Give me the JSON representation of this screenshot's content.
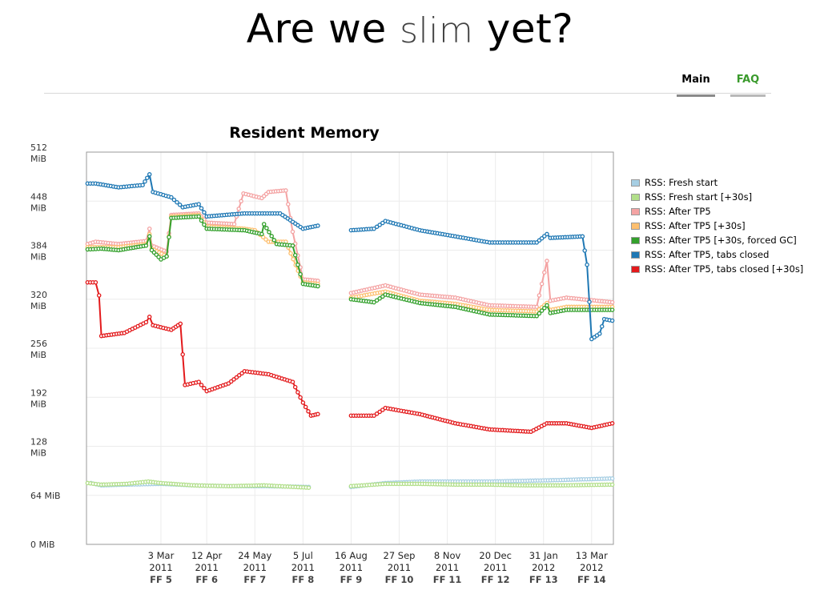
{
  "header": {
    "title_part1": "Are we",
    "title_part2": "slim",
    "title_part3": "yet?"
  },
  "nav": {
    "main": "Main",
    "faq": "FAQ"
  },
  "chart_data": {
    "type": "line",
    "title": "Resident Memory",
    "ylim": [
      0,
      512
    ],
    "y_ticks": [
      {
        "value": 0,
        "line1": "0 MiB",
        "line2": ""
      },
      {
        "value": 64,
        "line1": "64 MiB",
        "line2": ""
      },
      {
        "value": 128,
        "line1": "128",
        "line2": "MiB"
      },
      {
        "value": 192,
        "line1": "192",
        "line2": "MiB"
      },
      {
        "value": 256,
        "line1": "256",
        "line2": "MiB"
      },
      {
        "value": 320,
        "line1": "320",
        "line2": "MiB"
      },
      {
        "value": 384,
        "line1": "384",
        "line2": "MiB"
      },
      {
        "value": 448,
        "line1": "448",
        "line2": "MiB"
      },
      {
        "value": 512,
        "line1": "512",
        "line2": "MiB"
      }
    ],
    "x_range": [
      "2010-12-28",
      "2012-04-01"
    ],
    "x_ticks": [
      {
        "date": "2011-03-03",
        "line1": "3 Mar",
        "line2": "2011",
        "line3": "FF 5"
      },
      {
        "date": "2011-04-12",
        "line1": "12 Apr",
        "line2": "2011",
        "line3": "FF 6"
      },
      {
        "date": "2011-05-24",
        "line1": "24 May",
        "line2": "2011",
        "line3": "FF 7"
      },
      {
        "date": "2011-07-05",
        "line1": "5 Jul",
        "line2": "2011",
        "line3": "FF 8"
      },
      {
        "date": "2011-08-16",
        "line1": "16 Aug",
        "line2": "2011",
        "line3": "FF 9"
      },
      {
        "date": "2011-09-27",
        "line1": "27 Sep",
        "line2": "2011",
        "line3": "FF 10"
      },
      {
        "date": "2011-11-08",
        "line1": "8 Nov",
        "line2": "2011",
        "line3": "FF 11"
      },
      {
        "date": "2011-12-20",
        "line1": "20 Dec",
        "line2": "2011",
        "line3": "FF 12"
      },
      {
        "date": "2012-01-31",
        "line1": "31 Jan",
        "line2": "2012",
        "line3": "FF 13"
      },
      {
        "date": "2012-03-13",
        "line1": "13 Mar",
        "line2": "2012",
        "line3": "FF 14"
      }
    ],
    "legend_position": "right",
    "series": [
      {
        "name": "RSS: Fresh start",
        "color": "#a6cee3",
        "segments": [
          [
            [
              "2011-01-01",
              80
            ],
            [
              "2011-01-10",
              77
            ],
            [
              "2011-02-01",
              78
            ],
            [
              "2011-03-03",
              79
            ],
            [
              "2011-04-01",
              77
            ],
            [
              "2011-05-01",
              76
            ],
            [
              "2011-06-01",
              76
            ],
            [
              "2011-07-10",
              75
            ]
          ],
          [
            [
              "2011-08-16",
              75
            ],
            [
              "2011-09-15",
              80
            ],
            [
              "2011-10-15",
              82
            ],
            [
              "2011-11-15",
              82
            ],
            [
              "2011-12-15",
              82
            ],
            [
              "2012-01-15",
              83
            ],
            [
              "2012-02-15",
              84
            ],
            [
              "2012-03-31",
              86
            ]
          ]
        ]
      },
      {
        "name": "RSS: Fresh start [+30s]",
        "color": "#b2df8a",
        "segments": [
          [
            [
              "2010-12-29",
              80
            ],
            [
              "2011-01-10",
              78
            ],
            [
              "2011-02-01",
              79
            ],
            [
              "2011-02-20",
              82
            ],
            [
              "2011-03-03",
              80
            ],
            [
              "2011-04-01",
              77
            ],
            [
              "2011-05-01",
              76
            ],
            [
              "2011-06-01",
              77
            ],
            [
              "2011-07-10",
              74
            ]
          ],
          [
            [
              "2011-08-16",
              76
            ],
            [
              "2011-09-15",
              79
            ],
            [
              "2011-10-15",
              79
            ],
            [
              "2011-11-15",
              78
            ],
            [
              "2011-12-15",
              78
            ],
            [
              "2012-01-15",
              77
            ],
            [
              "2012-02-15",
              77
            ],
            [
              "2012-03-31",
              78
            ]
          ]
        ]
      },
      {
        "name": "RSS: After TP5",
        "color": "#f4a3a3",
        "segments": [
          [
            [
              "2010-12-29",
              392
            ],
            [
              "2011-01-05",
              395
            ],
            [
              "2011-01-25",
              392
            ],
            [
              "2011-02-18",
              396
            ],
            [
              "2011-02-21",
              412
            ],
            [
              "2011-02-23",
              390
            ],
            [
              "2011-03-08",
              382
            ],
            [
              "2011-03-12",
              430
            ],
            [
              "2011-04-05",
              432
            ],
            [
              "2011-04-12",
              420
            ],
            [
              "2011-05-06",
              418
            ],
            [
              "2011-05-14",
              458
            ],
            [
              "2011-05-30",
              452
            ],
            [
              "2011-06-05",
              460
            ],
            [
              "2011-06-20",
              462
            ],
            [
              "2011-06-26",
              408
            ],
            [
              "2011-07-05",
              346
            ],
            [
              "2011-07-18",
              344
            ]
          ],
          [
            [
              "2011-08-16",
              328
            ],
            [
              "2011-09-15",
              338
            ],
            [
              "2011-10-15",
              326
            ],
            [
              "2011-11-15",
              322
            ],
            [
              "2011-12-15",
              312
            ],
            [
              "2012-01-25",
              310
            ],
            [
              "2012-02-03",
              370
            ],
            [
              "2012-02-06",
              318
            ],
            [
              "2012-02-20",
              322
            ],
            [
              "2012-03-31",
              316
            ]
          ]
        ]
      },
      {
        "name": "RSS: After TP5 [+30s]",
        "color": "#fdbf6f",
        "segments": [
          [
            [
              "2010-12-29",
              388
            ],
            [
              "2011-01-25",
              388
            ],
            [
              "2011-02-18",
              392
            ],
            [
              "2011-02-21",
              405
            ],
            [
              "2011-02-23",
              386
            ],
            [
              "2011-03-08",
              376
            ],
            [
              "2011-03-12",
              428
            ],
            [
              "2011-04-05",
              430
            ],
            [
              "2011-04-12",
              415
            ],
            [
              "2011-05-15",
              412
            ],
            [
              "2011-05-24",
              410
            ],
            [
              "2011-06-05",
              395
            ],
            [
              "2011-06-20",
              395
            ],
            [
              "2011-07-05",
              342
            ],
            [
              "2011-07-18",
              340
            ]
          ],
          [
            [
              "2011-08-16",
              322
            ],
            [
              "2011-09-15",
              330
            ],
            [
              "2011-10-15",
              318
            ],
            [
              "2011-11-15",
              314
            ],
            [
              "2011-12-15",
              306
            ],
            [
              "2012-01-25",
              304
            ],
            [
              "2012-02-03",
              315
            ],
            [
              "2012-02-06",
              306
            ],
            [
              "2012-02-20",
              310
            ],
            [
              "2012-03-31",
              310
            ]
          ]
        ]
      },
      {
        "name": "RSS: After TP5 [+30s, forced GC]",
        "color": "#33a02c",
        "segments": [
          [
            [
              "2010-12-29",
              385
            ],
            [
              "2011-01-10",
              386
            ],
            [
              "2011-01-25",
              384
            ],
            [
              "2011-02-18",
              390
            ],
            [
              "2011-02-21",
              402
            ],
            [
              "2011-02-23",
              384
            ],
            [
              "2011-03-03",
              372
            ],
            [
              "2011-03-08",
              376
            ],
            [
              "2011-03-12",
              426
            ],
            [
              "2011-04-05",
              428
            ],
            [
              "2011-04-12",
              412
            ],
            [
              "2011-05-15",
              410
            ],
            [
              "2011-05-30",
              405
            ],
            [
              "2011-06-01",
              418
            ],
            [
              "2011-06-12",
              392
            ],
            [
              "2011-06-26",
              390
            ],
            [
              "2011-07-05",
              340
            ],
            [
              "2011-07-18",
              337
            ]
          ],
          [
            [
              "2011-08-16",
              320
            ],
            [
              "2011-09-05",
              316
            ],
            [
              "2011-09-15",
              326
            ],
            [
              "2011-10-15",
              315
            ],
            [
              "2011-11-15",
              310
            ],
            [
              "2011-12-15",
              300
            ],
            [
              "2012-01-25",
              298
            ],
            [
              "2012-02-03",
              312
            ],
            [
              "2012-02-06",
              302
            ],
            [
              "2012-02-20",
              306
            ],
            [
              "2012-03-31",
              306
            ]
          ]
        ]
      },
      {
        "name": "RSS: After TP5, tabs closed",
        "color": "#1f78b4",
        "segments": [
          [
            [
              "2010-12-29",
              471
            ],
            [
              "2011-01-05",
              471
            ],
            [
              "2011-01-25",
              466
            ],
            [
              "2011-02-15",
              469
            ],
            [
              "2011-02-21",
              483
            ],
            [
              "2011-02-24",
              460
            ],
            [
              "2011-03-12",
              453
            ],
            [
              "2011-03-22",
              440
            ],
            [
              "2011-04-05",
              444
            ],
            [
              "2011-04-12",
              428
            ],
            [
              "2011-05-15",
              432
            ],
            [
              "2011-06-15",
              432
            ],
            [
              "2011-07-05",
              412
            ],
            [
              "2011-07-18",
              416
            ]
          ],
          [
            [
              "2011-08-16",
              410
            ],
            [
              "2011-09-05",
              412
            ],
            [
              "2011-09-15",
              422
            ],
            [
              "2011-10-15",
              410
            ],
            [
              "2011-11-15",
              402
            ],
            [
              "2011-12-15",
              394
            ],
            [
              "2012-01-25",
              394
            ],
            [
              "2012-02-03",
              405
            ],
            [
              "2012-02-06",
              400
            ],
            [
              "2012-03-05",
              402
            ],
            [
              "2012-03-09",
              365
            ],
            [
              "2012-03-13",
              268
            ],
            [
              "2012-03-20",
              275
            ],
            [
              "2012-03-24",
              294
            ],
            [
              "2012-03-31",
              292
            ]
          ]
        ]
      },
      {
        "name": "RSS: After TP5, tabs closed [+30s]",
        "color": "#e31a1c",
        "segments": [
          [
            [
              "2010-12-29",
              342
            ],
            [
              "2011-01-05",
              342
            ],
            [
              "2011-01-08",
              325
            ],
            [
              "2011-01-10",
              272
            ],
            [
              "2011-01-30",
              276
            ],
            [
              "2011-02-18",
              290
            ],
            [
              "2011-02-21",
              297
            ],
            [
              "2011-02-24",
              286
            ],
            [
              "2011-03-12",
              280
            ],
            [
              "2011-03-20",
              288
            ],
            [
              "2011-03-24",
              208
            ],
            [
              "2011-04-05",
              212
            ],
            [
              "2011-04-12",
              200
            ],
            [
              "2011-05-01",
              210
            ],
            [
              "2011-05-15",
              226
            ],
            [
              "2011-06-05",
              222
            ],
            [
              "2011-06-26",
              212
            ],
            [
              "2011-07-05",
              185
            ],
            [
              "2011-07-12",
              168
            ],
            [
              "2011-07-18",
              170
            ]
          ],
          [
            [
              "2011-08-16",
              168
            ],
            [
              "2011-09-05",
              168
            ],
            [
              "2011-09-15",
              178
            ],
            [
              "2011-10-15",
              170
            ],
            [
              "2011-11-15",
              158
            ],
            [
              "2011-12-15",
              150
            ],
            [
              "2012-01-20",
              147
            ],
            [
              "2012-02-03",
              158
            ],
            [
              "2012-02-20",
              158
            ],
            [
              "2012-03-13",
              152
            ],
            [
              "2012-03-31",
              158
            ]
          ]
        ]
      }
    ]
  }
}
